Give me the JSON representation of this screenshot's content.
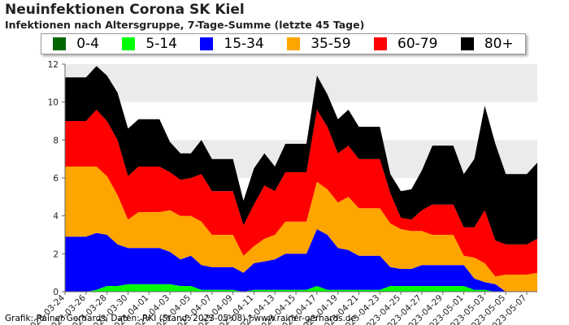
{
  "title": "Neuinfektionen Corona SK Kiel",
  "subtitle": "Infektionen nach Altersgruppe, 7-Tage-Summe (letzte 45 Tage)",
  "footer": "Grafik: Rainer Gerhards, Daten: RKI (Stand: 2023-05-08) | www.rainer-gerhards.de",
  "chart_data": {
    "type": "area",
    "stacked": true,
    "title": "Neuinfektionen Corona SK Kiel",
    "subtitle": "Infektionen nach Altersgruppe, 7-Tage-Summe (letzte 45 Tage)",
    "x": [
      "2023-03-24",
      "2023-03-25",
      "2023-03-26",
      "2023-03-27",
      "2023-03-28",
      "2023-03-29",
      "2023-03-30",
      "2023-03-31",
      "2023-04-01",
      "2023-04-02",
      "2023-04-03",
      "2023-04-04",
      "2023-04-05",
      "2023-04-06",
      "2023-04-07",
      "2023-04-08",
      "2023-04-09",
      "2023-04-10",
      "2023-04-11",
      "2023-04-12",
      "2023-04-13",
      "2023-04-14",
      "2023-04-15",
      "2023-04-16",
      "2023-04-17",
      "2023-04-18",
      "2023-04-19",
      "2023-04-20",
      "2023-04-21",
      "2023-04-22",
      "2023-04-23",
      "2023-04-24",
      "2023-04-25",
      "2023-04-26",
      "2023-04-27",
      "2023-04-28",
      "2023-04-29",
      "2023-04-30",
      "2023-05-01",
      "2023-05-02",
      "2023-05-03",
      "2023-05-04",
      "2023-05-05",
      "2023-05-06",
      "2023-05-07",
      "2023-05-08"
    ],
    "x_tick_labels": [
      "2023-03-24",
      "2023-03-26",
      "2023-03-28",
      "2023-03-30",
      "2023-04-01",
      "2023-04-03",
      "2023-04-05",
      "2023-04-07",
      "2023-04-09",
      "2023-04-11",
      "2023-04-13",
      "2023-04-15",
      "2023-04-17",
      "2023-04-19",
      "2023-04-21",
      "2023-04-23",
      "2023-04-25",
      "2023-04-27",
      "2023-04-29",
      "2023-05-01",
      "2023-05-03",
      "2023-05-05",
      "2023-05-07"
    ],
    "series": [
      {
        "name": "0-4",
        "color": "#006600",
        "values": [
          0,
          0,
          0,
          0,
          0,
          0,
          0,
          0,
          0,
          0,
          0,
          0,
          0,
          0,
          0,
          0,
          0,
          0,
          0,
          0,
          0,
          0,
          0,
          0,
          0,
          0,
          0,
          0,
          0,
          0,
          0,
          0,
          0,
          0,
          0,
          0,
          0,
          0,
          0,
          0,
          0,
          0,
          0,
          0,
          0,
          0
        ]
      },
      {
        "name": "5-14",
        "color": "#00ff00",
        "values": [
          0,
          0,
          0,
          0.1,
          0.3,
          0.3,
          0.4,
          0.4,
          0.4,
          0.4,
          0.4,
          0.3,
          0.3,
          0.1,
          0.1,
          0.1,
          0.1,
          0,
          0.1,
          0.1,
          0.1,
          0.1,
          0.1,
          0.1,
          0.3,
          0.1,
          0.1,
          0.1,
          0.1,
          0.1,
          0.1,
          0.3,
          0.3,
          0.3,
          0.3,
          0.3,
          0.3,
          0.3,
          0.3,
          0.1,
          0.1,
          0,
          0,
          0,
          0,
          0
        ]
      },
      {
        "name": "15-34",
        "color": "#0000ff",
        "values": [
          2.9,
          2.9,
          2.9,
          3.0,
          2.7,
          2.2,
          1.9,
          1.9,
          1.9,
          1.9,
          1.7,
          1.4,
          1.6,
          1.3,
          1.2,
          1.2,
          1.2,
          1.0,
          1.4,
          1.5,
          1.6,
          1.9,
          1.9,
          1.9,
          3.0,
          2.9,
          2.2,
          2.1,
          1.8,
          1.8,
          1.8,
          1.0,
          0.9,
          0.9,
          1.1,
          1.1,
          1.1,
          1.1,
          1.1,
          0.6,
          0.4,
          0.4,
          0,
          0,
          0,
          0
        ]
      },
      {
        "name": "35-59",
        "color": "#ffa500",
        "values": [
          3.7,
          3.7,
          3.7,
          3.5,
          3.1,
          2.6,
          1.5,
          1.9,
          1.9,
          1.9,
          2.2,
          2.3,
          2.1,
          2.3,
          1.7,
          1.7,
          1.7,
          0.9,
          0.9,
          1.2,
          1.3,
          1.7,
          1.7,
          1.7,
          2.5,
          2.4,
          2.4,
          2.8,
          2.5,
          2.5,
          2.5,
          2.3,
          2.1,
          2.0,
          1.8,
          1.6,
          1.6,
          1.6,
          0.5,
          1.1,
          1.0,
          0.4,
          0.9,
          0.9,
          0.9,
          1.0
        ]
      },
      {
        "name": "60-79",
        "color": "#ff0000",
        "values": [
          2.4,
          2.4,
          2.4,
          3.0,
          2.9,
          2.9,
          2.3,
          2.4,
          2.4,
          2.4,
          2.0,
          1.9,
          2.0,
          2.5,
          2.3,
          2.3,
          2.3,
          1.6,
          2.2,
          2.8,
          2.3,
          2.6,
          2.6,
          2.6,
          3.8,
          3.3,
          2.6,
          2.7,
          2.6,
          2.6,
          2.6,
          1.6,
          0.6,
          0.6,
          1.1,
          1.6,
          1.6,
          1.6,
          1.5,
          1.6,
          2.8,
          1.9,
          1.6,
          1.6,
          1.6,
          1.8
        ]
      },
      {
        "name": "80+",
        "color": "#000000",
        "values": [
          2.3,
          2.3,
          2.3,
          2.3,
          2.4,
          2.5,
          2.5,
          2.5,
          2.5,
          2.5,
          1.6,
          1.4,
          1.3,
          1.8,
          1.7,
          1.7,
          1.7,
          1.3,
          1.9,
          1.7,
          1.3,
          1.5,
          1.5,
          1.5,
          1.8,
          1.7,
          1.8,
          1.9,
          1.7,
          1.7,
          1.7,
          1.0,
          1.4,
          1.6,
          2.1,
          3.1,
          3.1,
          3.1,
          2.8,
          3.6,
          5.5,
          5.1,
          3.7,
          3.7,
          3.7,
          4.0
        ]
      }
    ],
    "ylim": [
      0,
      12
    ],
    "y_ticks": [
      0,
      2,
      4,
      6,
      8,
      10,
      12
    ],
    "xlabel": "",
    "ylabel": "",
    "grid": "alternating horizontal bands",
    "legend_placement": "top"
  }
}
